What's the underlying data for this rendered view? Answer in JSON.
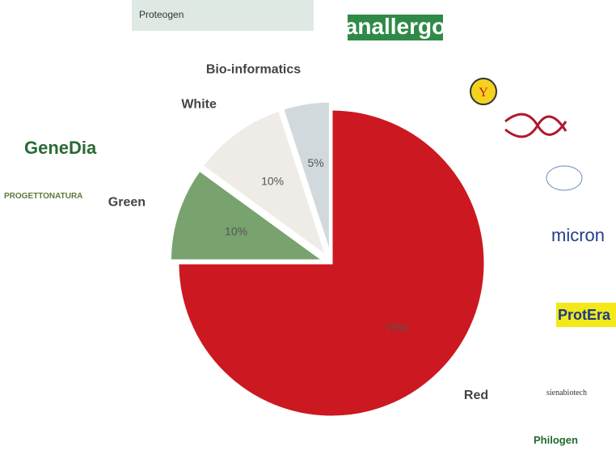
{
  "chart_data": {
    "type": "pie",
    "categories": [
      "Red",
      "Green",
      "White",
      "Bio-informatics"
    ],
    "values": [
      75,
      10,
      10,
      5
    ],
    "value_labels": [
      "75%",
      "10%",
      "10%",
      "5%"
    ],
    "colors": [
      "#cc1820",
      "#78a26e",
      "#efece7",
      "#d2d9dc"
    ],
    "start_angle": 0,
    "direction": "clockwise"
  },
  "logos": [
    "Proteogen",
    "anallergo",
    "Y",
    "GeneDia",
    "PROGETTONATURA",
    "micron",
    "ProtEra",
    "sienabiotech",
    "Philogen"
  ]
}
